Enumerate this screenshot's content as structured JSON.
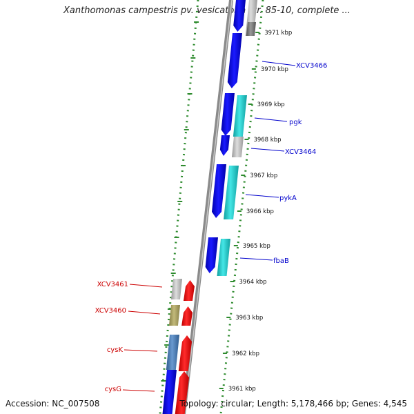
{
  "title": "Xanthomonas campestris pv. vesicatoria str. 85-10, complete ...",
  "footer": {
    "accession": "Accession: NC_007508",
    "summary": "Topology: circular; Length: 5,178,466 bp; Genes: 4,545"
  },
  "scale_ticks": [
    "3971 kbp",
    "3970 kbp",
    "3969 kbp",
    "3968 kbp",
    "3967 kbp",
    "3966 kbp",
    "3965 kbp",
    "3964 kbp",
    "3963 kbp",
    "3962 kbp",
    "3961 kbp"
  ],
  "gene_labels_right": [
    "XCV3466",
    "pgk",
    "XCV3464",
    "pykA",
    "fbaB"
  ],
  "gene_labels_left": [
    "XCV3461",
    "XCV3460",
    "cysK",
    "cysG"
  ],
  "colors": {
    "label_right": "#0000cc",
    "label_left": "#cc0000",
    "backbone": "#808080",
    "tick": "#2e8b2e",
    "cds_forward": "#0000ee",
    "cds_reverse": "#ee0000",
    "feature_cyan": "#22cccc",
    "feature_gray": "#bbbbbb",
    "feature_olive": "#aaa060",
    "feature_steel": "#4a7ab0"
  }
}
